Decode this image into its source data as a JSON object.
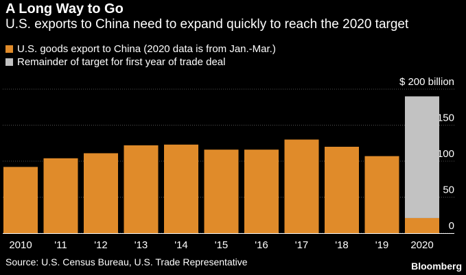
{
  "header": {
    "title": "A Long Way to Go",
    "subtitle": "U.S. exports to China need to expand quickly to reach the 2020 target"
  },
  "legend": [
    {
      "label": "U.S. goods export to China (2020 data is from Jan.-Mar.)",
      "color": "#e08b2a"
    },
    {
      "label": "Remainder of target for first year of trade deal",
      "color": "#c2c2c2"
    }
  ],
  "chart_data": {
    "type": "bar",
    "stacked": true,
    "categories": [
      "2010",
      "'11",
      "'12",
      "'13",
      "'14",
      "'15",
      "'16",
      "'17",
      "'18",
      "'19",
      "2020"
    ],
    "series": [
      {
        "name": "U.S. goods export to China (2020 data is from Jan.-Mar.)",
        "color": "#e08b2a",
        "values": [
          92,
          104,
          111,
          122,
          123,
          116,
          116,
          130,
          120,
          107,
          21
        ]
      },
      {
        "name": "Remainder of target for first year of trade deal",
        "color": "#c2c2c2",
        "values": [
          0,
          0,
          0,
          0,
          0,
          0,
          0,
          0,
          0,
          0,
          169
        ]
      }
    ],
    "ylim": [
      0,
      200
    ],
    "yticks": [
      0,
      50,
      100,
      150,
      200
    ],
    "ytick_labels": [
      "0",
      "50",
      "100",
      "150",
      "$ 200 billion"
    ],
    "grid": true,
    "gridline_color": "#555555",
    "y_axis_side": "right",
    "title": "A Long Way to Go",
    "xlabel": "",
    "ylabel": ""
  },
  "footer": {
    "source": "Source: U.S. Census Bureau, U.S. Trade Representative",
    "brand": "Bloomberg"
  }
}
